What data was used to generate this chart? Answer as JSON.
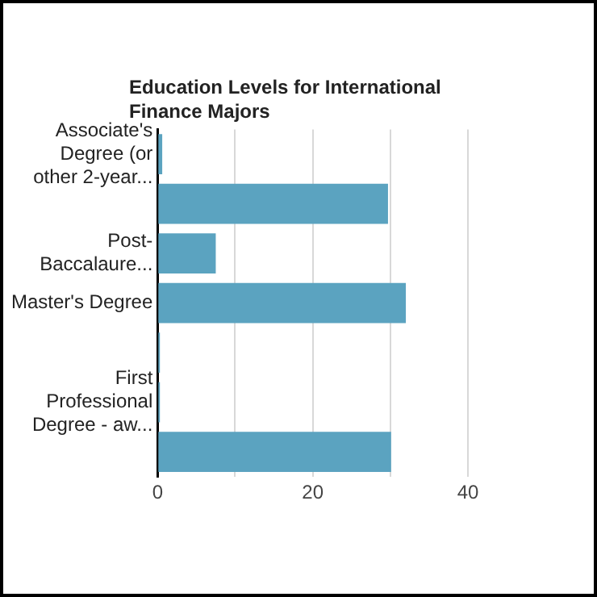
{
  "chart_data": {
    "type": "bar",
    "orientation": "horizontal",
    "title": "Education Levels for International Finance Majors",
    "categories": [
      "Associate's Degree (or other 2-year...",
      null,
      "Post-Baccalaure...",
      "Master's Degree",
      null,
      "First Professional Degree - aw...",
      null
    ],
    "values": [
      0.6,
      29.7,
      7.5,
      32.0,
      0.3,
      0.3,
      30.1
    ],
    "color": "#5ba3c0",
    "xlim": [
      0,
      40
    ],
    "xticks": [
      0,
      {
        "value": 10,
        "label": null
      },
      20,
      {
        "value": 30,
        "label": null
      },
      40
    ],
    "grid": "x"
  }
}
